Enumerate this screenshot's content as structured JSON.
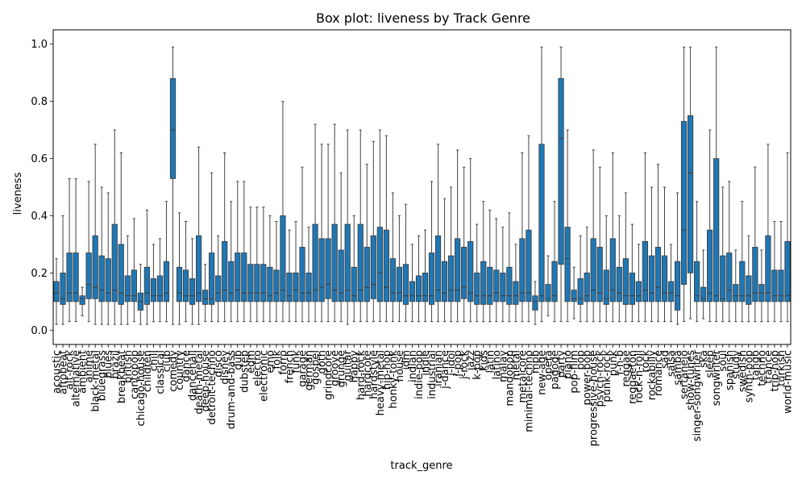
{
  "chart_data": {
    "type": "box",
    "title": "Box plot: liveness by Track Genre",
    "xlabel": "track_genre",
    "ylabel": "liveness",
    "ylim": [
      -0.05,
      1.05
    ],
    "yticks": [
      "0.0",
      "0.2",
      "0.4",
      "0.6",
      "0.8",
      "1.0"
    ],
    "box_color": "#1f77b4",
    "grid": false,
    "categories": [
      "acoustic",
      "afrobeat",
      "alt-rock",
      "alternative",
      "ambient",
      "anime",
      "black-metal",
      "bluegrass",
      "blues",
      "brazil",
      "breakbeat",
      "british",
      "cantopop",
      "chicago-house",
      "children",
      "chill",
      "classical",
      "club",
      "comedy",
      "country",
      "dance",
      "dancehall",
      "death-metal",
      "deep-house",
      "detroit-techno",
      "disco",
      "disney",
      "drum-and-bass",
      "dub",
      "dubstep",
      "edm",
      "electro",
      "electronic",
      "emo",
      "folk",
      "forro",
      "french",
      "funk",
      "garage",
      "german",
      "gospel",
      "goth",
      "grindcore",
      "groove",
      "grunge",
      "guitar",
      "happy",
      "hard-rock",
      "hardcore",
      "hardstyle",
      "heavy-metal",
      "hip-hop",
      "honky-tonk",
      "house",
      "idm",
      "indian",
      "indie-pop",
      "indie",
      "industrial",
      "iranian",
      "j-dance",
      "j-idol",
      "j-pop",
      "j-rock",
      "jazz",
      "k-pop",
      "kids",
      "latin",
      "latino",
      "malay",
      "mandopop",
      "metal",
      "metalcore",
      "minimal-techno",
      "mpb",
      "new-age",
      "opera",
      "pagode",
      "party",
      "piano",
      "pop-film",
      "pop",
      "power-pop",
      "progressive-house",
      "psych-rock",
      "punk-rock",
      "punk",
      "r-n-b",
      "reggae",
      "reggaeton",
      "rock-n-roll",
      "rock",
      "rockabilly",
      "romance",
      "sad",
      "salsa",
      "samba",
      "sertanejo",
      "show-tunes",
      "singer-songwriter",
      "ska",
      "sleep",
      "songwriter",
      "soul",
      "spanish",
      "study",
      "swedish",
      "synth-pop",
      "tango",
      "techno",
      "trance",
      "trip-hop",
      "turkish",
      "world-music"
    ],
    "stats": [
      {
        "q1": 0.1,
        "median": 0.13,
        "q3": 0.17,
        "whisker_low": 0.02,
        "whisker_high": 0.25
      },
      {
        "q1": 0.09,
        "median": 0.11,
        "q3": 0.2,
        "whisker_low": 0.02,
        "whisker_high": 0.4
      },
      {
        "q1": 0.1,
        "median": 0.13,
        "q3": 0.27,
        "whisker_low": 0.03,
        "whisker_high": 0.53
      },
      {
        "q1": 0.1,
        "median": 0.13,
        "q3": 0.27,
        "whisker_low": 0.03,
        "whisker_high": 0.53
      },
      {
        "q1": 0.09,
        "median": 0.11,
        "q3": 0.12,
        "whisker_low": 0.05,
        "whisker_high": 0.15
      },
      {
        "q1": 0.11,
        "median": 0.16,
        "q3": 0.27,
        "whisker_low": 0.03,
        "whisker_high": 0.52
      },
      {
        "q1": 0.11,
        "median": 0.15,
        "q3": 0.33,
        "whisker_low": 0.02,
        "whisker_high": 0.65
      },
      {
        "q1": 0.1,
        "median": 0.14,
        "q3": 0.26,
        "whisker_low": 0.02,
        "whisker_high": 0.5
      },
      {
        "q1": 0.1,
        "median": 0.13,
        "q3": 0.25,
        "whisker_low": 0.02,
        "whisker_high": 0.48
      },
      {
        "q1": 0.1,
        "median": 0.14,
        "q3": 0.37,
        "whisker_low": 0.02,
        "whisker_high": 0.7
      },
      {
        "q1": 0.09,
        "median": 0.13,
        "q3": 0.3,
        "whisker_low": 0.02,
        "whisker_high": 0.62
      },
      {
        "q1": 0.1,
        "median": 0.12,
        "q3": 0.19,
        "whisker_low": 0.02,
        "whisker_high": 0.33
      },
      {
        "q1": 0.1,
        "median": 0.12,
        "q3": 0.21,
        "whisker_low": 0.03,
        "whisker_high": 0.39
      },
      {
        "q1": 0.07,
        "median": 0.1,
        "q3": 0.13,
        "whisker_low": 0.02,
        "whisker_high": 0.23
      },
      {
        "q1": 0.09,
        "median": 0.13,
        "q3": 0.22,
        "whisker_low": 0.02,
        "whisker_high": 0.42
      },
      {
        "q1": 0.1,
        "median": 0.12,
        "q3": 0.18,
        "whisker_low": 0.03,
        "whisker_high": 0.3
      },
      {
        "q1": 0.1,
        "median": 0.12,
        "q3": 0.19,
        "whisker_low": 0.03,
        "whisker_high": 0.32
      },
      {
        "q1": 0.1,
        "median": 0.13,
        "q3": 0.24,
        "whisker_low": 0.03,
        "whisker_high": 0.45
      },
      {
        "q1": 0.53,
        "median": 0.7,
        "q3": 0.88,
        "whisker_low": 0.02,
        "whisker_high": 0.99
      },
      {
        "q1": 0.1,
        "median": 0.13,
        "q3": 0.22,
        "whisker_low": 0.02,
        "whisker_high": 0.41
      },
      {
        "q1": 0.1,
        "median": 0.12,
        "q3": 0.21,
        "whisker_low": 0.03,
        "whisker_high": 0.38
      },
      {
        "q1": 0.09,
        "median": 0.12,
        "q3": 0.18,
        "whisker_low": 0.02,
        "whisker_high": 0.32
      },
      {
        "q1": 0.1,
        "median": 0.13,
        "q3": 0.33,
        "whisker_low": 0.02,
        "whisker_high": 0.64
      },
      {
        "q1": 0.09,
        "median": 0.11,
        "q3": 0.14,
        "whisker_low": 0.03,
        "whisker_high": 0.23
      },
      {
        "q1": 0.09,
        "median": 0.11,
        "q3": 0.27,
        "whisker_low": 0.03,
        "whisker_high": 0.55
      },
      {
        "q1": 0.1,
        "median": 0.13,
        "q3": 0.19,
        "whisker_low": 0.03,
        "whisker_high": 0.33
      },
      {
        "q1": 0.1,
        "median": 0.14,
        "q3": 0.31,
        "whisker_low": 0.03,
        "whisker_high": 0.62
      },
      {
        "q1": 0.1,
        "median": 0.13,
        "q3": 0.24,
        "whisker_low": 0.03,
        "whisker_high": 0.45
      },
      {
        "q1": 0.1,
        "median": 0.14,
        "q3": 0.27,
        "whisker_low": 0.03,
        "whisker_high": 0.52
      },
      {
        "q1": 0.1,
        "median": 0.13,
        "q3": 0.27,
        "whisker_low": 0.03,
        "whisker_high": 0.52
      },
      {
        "q1": 0.1,
        "median": 0.13,
        "q3": 0.23,
        "whisker_low": 0.03,
        "whisker_high": 0.43
      },
      {
        "q1": 0.1,
        "median": 0.13,
        "q3": 0.23,
        "whisker_low": 0.03,
        "whisker_high": 0.43
      },
      {
        "q1": 0.1,
        "median": 0.13,
        "q3": 0.23,
        "whisker_low": 0.03,
        "whisker_high": 0.43
      },
      {
        "q1": 0.1,
        "median": 0.12,
        "q3": 0.22,
        "whisker_low": 0.03,
        "whisker_high": 0.4
      },
      {
        "q1": 0.1,
        "median": 0.13,
        "q3": 0.21,
        "whisker_low": 0.03,
        "whisker_high": 0.38
      },
      {
        "q1": 0.1,
        "median": 0.14,
        "q3": 0.4,
        "whisker_low": 0.03,
        "whisker_high": 0.8
      },
      {
        "q1": 0.1,
        "median": 0.12,
        "q3": 0.2,
        "whisker_low": 0.03,
        "whisker_high": 0.35
      },
      {
        "q1": 0.1,
        "median": 0.14,
        "q3": 0.2,
        "whisker_low": 0.03,
        "whisker_high": 0.38
      },
      {
        "q1": 0.1,
        "median": 0.13,
        "q3": 0.29,
        "whisker_low": 0.03,
        "whisker_high": 0.57
      },
      {
        "q1": 0.1,
        "median": 0.13,
        "q3": 0.2,
        "whisker_low": 0.03,
        "whisker_high": 0.36
      },
      {
        "q1": 0.1,
        "median": 0.14,
        "q3": 0.37,
        "whisker_low": 0.03,
        "whisker_high": 0.72
      },
      {
        "q1": 0.1,
        "median": 0.15,
        "q3": 0.32,
        "whisker_low": 0.03,
        "whisker_high": 0.65
      },
      {
        "q1": 0.11,
        "median": 0.16,
        "q3": 0.32,
        "whisker_low": 0.03,
        "whisker_high": 0.65
      },
      {
        "q1": 0.1,
        "median": 0.14,
        "q3": 0.37,
        "whisker_low": 0.03,
        "whisker_high": 0.72
      },
      {
        "q1": 0.1,
        "median": 0.13,
        "q3": 0.28,
        "whisker_low": 0.03,
        "whisker_high": 0.55
      },
      {
        "q1": 0.1,
        "median": 0.14,
        "q3": 0.37,
        "whisker_low": 0.02,
        "whisker_high": 0.7
      },
      {
        "q1": 0.1,
        "median": 0.12,
        "q3": 0.22,
        "whisker_low": 0.03,
        "whisker_high": 0.4
      },
      {
        "q1": 0.1,
        "median": 0.14,
        "q3": 0.37,
        "whisker_low": 0.03,
        "whisker_high": 0.7
      },
      {
        "q1": 0.1,
        "median": 0.15,
        "q3": 0.29,
        "whisker_low": 0.03,
        "whisker_high": 0.58
      },
      {
        "q1": 0.11,
        "median": 0.16,
        "q3": 0.33,
        "whisker_low": 0.03,
        "whisker_high": 0.66
      },
      {
        "q1": 0.1,
        "median": 0.2,
        "q3": 0.36,
        "whisker_low": 0.03,
        "whisker_high": 0.7
      },
      {
        "q1": 0.1,
        "median": 0.15,
        "q3": 0.35,
        "whisker_low": 0.03,
        "whisker_high": 0.68
      },
      {
        "q1": 0.1,
        "median": 0.13,
        "q3": 0.25,
        "whisker_low": 0.03,
        "whisker_high": 0.48
      },
      {
        "q1": 0.1,
        "median": 0.13,
        "q3": 0.22,
        "whisker_low": 0.03,
        "whisker_high": 0.4
      },
      {
        "q1": 0.09,
        "median": 0.12,
        "q3": 0.23,
        "whisker_low": 0.03,
        "whisker_high": 0.44
      },
      {
        "q1": 0.1,
        "median": 0.12,
        "q3": 0.17,
        "whisker_low": 0.03,
        "whisker_high": 0.3
      },
      {
        "q1": 0.1,
        "median": 0.12,
        "q3": 0.19,
        "whisker_low": 0.03,
        "whisker_high": 0.33
      },
      {
        "q1": 0.1,
        "median": 0.12,
        "q3": 0.2,
        "whisker_low": 0.03,
        "whisker_high": 0.35
      },
      {
        "q1": 0.09,
        "median": 0.12,
        "q3": 0.27,
        "whisker_low": 0.03,
        "whisker_high": 0.52
      },
      {
        "q1": 0.1,
        "median": 0.14,
        "q3": 0.33,
        "whisker_low": 0.03,
        "whisker_high": 0.65
      },
      {
        "q1": 0.1,
        "median": 0.13,
        "q3": 0.24,
        "whisker_low": 0.03,
        "whisker_high": 0.46
      },
      {
        "q1": 0.1,
        "median": 0.14,
        "q3": 0.26,
        "whisker_low": 0.03,
        "whisker_high": 0.5
      },
      {
        "q1": 0.1,
        "median": 0.14,
        "q3": 0.32,
        "whisker_low": 0.03,
        "whisker_high": 0.63
      },
      {
        "q1": 0.11,
        "median": 0.15,
        "q3": 0.29,
        "whisker_low": 0.03,
        "whisker_high": 0.57
      },
      {
        "q1": 0.1,
        "median": 0.13,
        "q3": 0.31,
        "whisker_low": 0.03,
        "whisker_high": 0.6
      },
      {
        "q1": 0.09,
        "median": 0.12,
        "q3": 0.2,
        "whisker_low": 0.03,
        "whisker_high": 0.37
      },
      {
        "q1": 0.09,
        "median": 0.12,
        "q3": 0.24,
        "whisker_low": 0.03,
        "whisker_high": 0.45
      },
      {
        "q1": 0.09,
        "median": 0.12,
        "q3": 0.22,
        "whisker_low": 0.03,
        "whisker_high": 0.42
      },
      {
        "q1": 0.1,
        "median": 0.13,
        "q3": 0.21,
        "whisker_low": 0.03,
        "whisker_high": 0.39
      },
      {
        "q1": 0.1,
        "median": 0.12,
        "q3": 0.2,
        "whisker_low": 0.03,
        "whisker_high": 0.36
      },
      {
        "q1": 0.09,
        "median": 0.12,
        "q3": 0.22,
        "whisker_low": 0.03,
        "whisker_high": 0.41
      },
      {
        "q1": 0.09,
        "median": 0.12,
        "q3": 0.17,
        "whisker_low": 0.03,
        "whisker_high": 0.3
      },
      {
        "q1": 0.1,
        "median": 0.13,
        "q3": 0.32,
        "whisker_low": 0.03,
        "whisker_high": 0.62
      },
      {
        "q1": 0.1,
        "median": 0.13,
        "q3": 0.35,
        "whisker_low": 0.03,
        "whisker_high": 0.68
      },
      {
        "q1": 0.07,
        "median": 0.1,
        "q3": 0.12,
        "whisker_low": 0.02,
        "whisker_high": 0.17
      },
      {
        "q1": 0.1,
        "median": 0.12,
        "q3": 0.65,
        "whisker_low": 0.03,
        "whisker_high": 0.99
      },
      {
        "q1": 0.1,
        "median": 0.11,
        "q3": 0.16,
        "whisker_low": 0.05,
        "whisker_high": 0.26
      },
      {
        "q1": 0.1,
        "median": 0.12,
        "q3": 0.24,
        "whisker_low": 0.03,
        "whisker_high": 0.45
      },
      {
        "q1": 0.23,
        "median": 0.67,
        "q3": 0.88,
        "whisker_low": 0.03,
        "whisker_high": 0.99
      },
      {
        "q1": 0.1,
        "median": 0.25,
        "q3": 0.36,
        "whisker_low": 0.03,
        "whisker_high": 0.7
      },
      {
        "q1": 0.1,
        "median": 0.11,
        "q3": 0.14,
        "whisker_low": 0.04,
        "whisker_high": 0.22
      },
      {
        "q1": 0.09,
        "median": 0.11,
        "q3": 0.18,
        "whisker_low": 0.03,
        "whisker_high": 0.33
      },
      {
        "q1": 0.1,
        "median": 0.12,
        "q3": 0.2,
        "whisker_low": 0.03,
        "whisker_high": 0.36
      },
      {
        "q1": 0.1,
        "median": 0.14,
        "q3": 0.32,
        "whisker_low": 0.03,
        "whisker_high": 0.63
      },
      {
        "q1": 0.1,
        "median": 0.13,
        "q3": 0.29,
        "whisker_low": 0.03,
        "whisker_high": 0.57
      },
      {
        "q1": 0.09,
        "median": 0.11,
        "q3": 0.21,
        "whisker_low": 0.03,
        "whisker_high": 0.4
      },
      {
        "q1": 0.1,
        "median": 0.14,
        "q3": 0.32,
        "whisker_low": 0.03,
        "whisker_high": 0.62
      },
      {
        "q1": 0.1,
        "median": 0.13,
        "q3": 0.22,
        "whisker_low": 0.03,
        "whisker_high": 0.4
      },
      {
        "q1": 0.09,
        "median": 0.12,
        "q3": 0.25,
        "whisker_low": 0.03,
        "whisker_high": 0.48
      },
      {
        "q1": 0.09,
        "median": 0.12,
        "q3": 0.2,
        "whisker_low": 0.03,
        "whisker_high": 0.37
      },
      {
        "q1": 0.1,
        "median": 0.12,
        "q3": 0.17,
        "whisker_low": 0.03,
        "whisker_high": 0.3
      },
      {
        "q1": 0.1,
        "median": 0.14,
        "q3": 0.31,
        "whisker_low": 0.03,
        "whisker_high": 0.62
      },
      {
        "q1": 0.1,
        "median": 0.13,
        "q3": 0.26,
        "whisker_low": 0.03,
        "whisker_high": 0.5
      },
      {
        "q1": 0.1,
        "median": 0.15,
        "q3": 0.29,
        "whisker_low": 0.03,
        "whisker_high": 0.58
      },
      {
        "q1": 0.1,
        "median": 0.13,
        "q3": 0.26,
        "whisker_low": 0.03,
        "whisker_high": 0.5
      },
      {
        "q1": 0.1,
        "median": 0.13,
        "q3": 0.17,
        "whisker_low": 0.03,
        "whisker_high": 0.3
      },
      {
        "q1": 0.07,
        "median": 0.12,
        "q3": 0.24,
        "whisker_low": 0.02,
        "whisker_high": 0.48
      },
      {
        "q1": 0.16,
        "median": 0.35,
        "q3": 0.73,
        "whisker_low": 0.03,
        "whisker_high": 0.99
      },
      {
        "q1": 0.2,
        "median": 0.55,
        "q3": 0.75,
        "whisker_low": 0.04,
        "whisker_high": 0.99
      },
      {
        "q1": 0.1,
        "median": 0.12,
        "q3": 0.24,
        "whisker_low": 0.03,
        "whisker_high": 0.45
      },
      {
        "q1": 0.1,
        "median": 0.11,
        "q3": 0.15,
        "whisker_low": 0.04,
        "whisker_high": 0.28
      },
      {
        "q1": 0.1,
        "median": 0.13,
        "q3": 0.35,
        "whisker_low": 0.03,
        "whisker_high": 0.7
      },
      {
        "q1": 0.1,
        "median": 0.12,
        "q3": 0.6,
        "whisker_low": 0.03,
        "whisker_high": 0.99
      },
      {
        "q1": 0.1,
        "median": 0.11,
        "q3": 0.26,
        "whisker_low": 0.03,
        "whisker_high": 0.5
      },
      {
        "q1": 0.1,
        "median": 0.14,
        "q3": 0.27,
        "whisker_low": 0.03,
        "whisker_high": 0.52
      },
      {
        "q1": 0.1,
        "median": 0.12,
        "q3": 0.16,
        "whisker_low": 0.03,
        "whisker_high": 0.28
      },
      {
        "q1": 0.1,
        "median": 0.12,
        "q3": 0.24,
        "whisker_low": 0.03,
        "whisker_high": 0.45
      },
      {
        "q1": 0.09,
        "median": 0.12,
        "q3": 0.19,
        "whisker_low": 0.03,
        "whisker_high": 0.33
      },
      {
        "q1": 0.1,
        "median": 0.13,
        "q3": 0.29,
        "whisker_low": 0.03,
        "whisker_high": 0.57
      },
      {
        "q1": 0.1,
        "median": 0.13,
        "q3": 0.16,
        "whisker_low": 0.03,
        "whisker_high": 0.28
      },
      {
        "q1": 0.1,
        "median": 0.13,
        "q3": 0.33,
        "whisker_low": 0.03,
        "whisker_high": 0.65
      },
      {
        "q1": 0.1,
        "median": 0.12,
        "q3": 0.21,
        "whisker_low": 0.03,
        "whisker_high": 0.38
      },
      {
        "q1": 0.1,
        "median": 0.12,
        "q3": 0.21,
        "whisker_low": 0.03,
        "whisker_high": 0.38
      },
      {
        "q1": 0.1,
        "median": 0.12,
        "q3": 0.31,
        "whisker_low": 0.03,
        "whisker_high": 0.62
      }
    ]
  }
}
